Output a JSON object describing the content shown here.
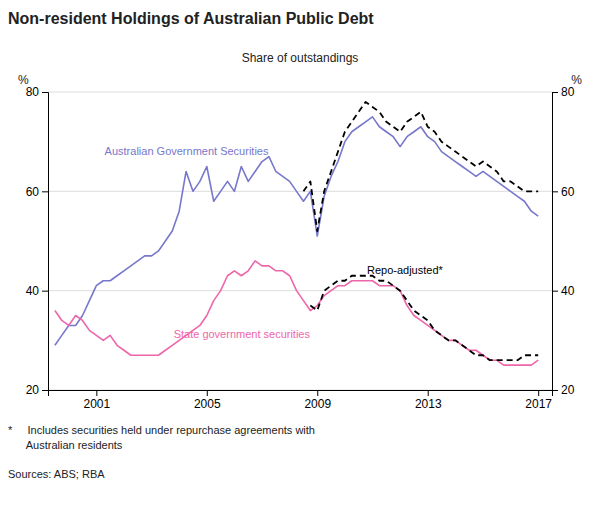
{
  "chart_data": {
    "type": "line",
    "title": "Non-resident Holdings of Australian Public Debt",
    "subtitle": "Share of outstandings",
    "ylabel": "%",
    "y2label": "%",
    "xlim": [
      1999.25,
      2017.5
    ],
    "xticks": [
      2001,
      2005,
      2009,
      2013,
      2017
    ],
    "ylim": [
      20,
      80
    ],
    "yticks": [
      20,
      40,
      60,
      80
    ],
    "y2lim": [
      20,
      80
    ],
    "y2ticks": [
      20,
      40,
      60,
      80
    ],
    "grid": true,
    "x": [
      1999.5,
      1999.75,
      2000,
      2000.25,
      2000.5,
      2000.75,
      2001,
      2001.25,
      2001.5,
      2001.75,
      2002,
      2002.25,
      2002.5,
      2002.75,
      2003,
      2003.25,
      2003.5,
      2003.75,
      2004,
      2004.25,
      2004.5,
      2004.75,
      2005,
      2005.25,
      2005.5,
      2005.75,
      2006,
      2006.25,
      2006.5,
      2006.75,
      2007,
      2007.25,
      2007.5,
      2007.75,
      2008,
      2008.25,
      2008.5,
      2008.75,
      2009,
      2009.25,
      2009.5,
      2009.75,
      2010,
      2010.25,
      2010.5,
      2010.75,
      2011,
      2011.25,
      2011.5,
      2011.75,
      2012,
      2012.25,
      2012.5,
      2012.75,
      2013,
      2013.25,
      2013.5,
      2013.75,
      2014,
      2014.25,
      2014.5,
      2014.75,
      2015,
      2015.25,
      2015.5,
      2015.75,
      2016,
      2016.25,
      2016.5,
      2016.75,
      2017
    ],
    "series": [
      {
        "color": "#7777cc",
        "line_style": "solid",
        "values": [
          29,
          31,
          33,
          33,
          35,
          38,
          41,
          42,
          42,
          43,
          44,
          45,
          46,
          47,
          47,
          48,
          50,
          52,
          56,
          64,
          60,
          62,
          65,
          58,
          60,
          62,
          60,
          65,
          62,
          64,
          66,
          67,
          64,
          63,
          62,
          60,
          58,
          60,
          51,
          59,
          63,
          66,
          70,
          72,
          73,
          74,
          75,
          73,
          72,
          71,
          69,
          71,
          72,
          73,
          71,
          70,
          68,
          67,
          66,
          65,
          64,
          63,
          64,
          63,
          62,
          61,
          60,
          59,
          58,
          56,
          55
        ]
      },
      {
        "color": "#ee66aa",
        "line_style": "solid",
        "values": [
          36,
          34,
          33,
          35,
          34,
          32,
          31,
          30,
          31,
          29,
          28,
          27,
          27,
          27,
          27,
          27,
          28,
          29,
          30,
          31,
          32,
          33,
          35,
          38,
          40,
          43,
          44,
          43,
          44,
          46,
          45,
          45,
          44,
          44,
          43,
          40,
          38,
          36,
          37,
          39,
          40,
          41,
          41,
          42,
          42,
          42,
          42,
          41,
          41,
          41,
          40,
          37,
          35,
          34,
          33,
          32,
          31,
          30,
          30,
          29,
          28,
          28,
          27,
          26,
          26,
          25,
          25,
          25,
          25,
          25,
          26
        ]
      },
      {
        "color": "#000000",
        "line_style": "dashed",
        "values": [
          null,
          null,
          null,
          null,
          null,
          null,
          null,
          null,
          null,
          null,
          null,
          null,
          null,
          null,
          null,
          null,
          null,
          null,
          null,
          null,
          null,
          null,
          null,
          null,
          null,
          null,
          null,
          null,
          null,
          null,
          null,
          null,
          null,
          null,
          null,
          null,
          60,
          62,
          52,
          60,
          64,
          68,
          72,
          74,
          76,
          78,
          77,
          76,
          74,
          73,
          72,
          74,
          75,
          76,
          73,
          72,
          70,
          69,
          68,
          67,
          66,
          65,
          66,
          65,
          64,
          62,
          62,
          61,
          60,
          60,
          60
        ]
      },
      {
        "color": "#000000",
        "line_style": "dashed",
        "values": [
          null,
          null,
          null,
          null,
          null,
          null,
          null,
          null,
          null,
          null,
          null,
          null,
          null,
          null,
          null,
          null,
          null,
          null,
          null,
          null,
          null,
          null,
          null,
          null,
          null,
          null,
          null,
          null,
          null,
          null,
          null,
          null,
          null,
          null,
          null,
          null,
          null,
          37,
          36,
          40,
          41,
          42,
          42,
          43,
          43,
          43,
          43,
          42,
          42,
          41,
          40,
          38,
          36,
          35,
          34,
          32,
          31,
          30,
          30,
          29,
          28,
          27,
          27,
          26,
          26,
          26,
          26,
          26,
          27,
          27,
          27
        ]
      }
    ],
    "annotations": [
      {
        "text": "Australian Government Securities",
        "x": 2001.3,
        "y": 68,
        "color": "#7777cc"
      },
      {
        "text": "State government securities",
        "x": 2003.8,
        "y": 31,
        "color": "#ee66aa"
      },
      {
        "text": "Repo-adjusted*",
        "x": 2010.8,
        "y": 44,
        "color": "#000000"
      }
    ],
    "notes": [
      "*     Includes securities held under repurchase agreements with",
      "      Australian residents",
      "Sources: ABS; RBA"
    ]
  }
}
